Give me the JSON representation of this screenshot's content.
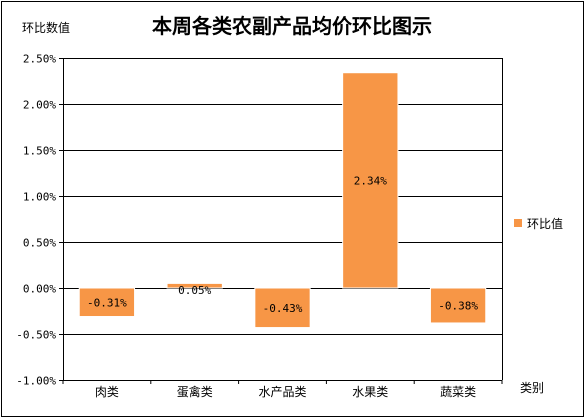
{
  "chart_data": {
    "type": "bar",
    "title": "本周各类农副产品均价环比图示",
    "ylabel": "环比数值",
    "xlabel": "类别",
    "categories": [
      "肉类",
      "蛋禽类",
      "水产品类",
      "水果类",
      "蔬菜类"
    ],
    "series": [
      {
        "name": "环比值",
        "values": [
          -0.31,
          0.05,
          -0.43,
          2.34,
          -0.38
        ]
      }
    ],
    "data_labels": [
      "-0.31%",
      "0.05%",
      "-0.43%",
      "2.34%",
      "-0.38%"
    ],
    "ylim": [
      -1.0,
      2.5
    ],
    "yticks": [
      2.5,
      2.0,
      1.5,
      1.0,
      0.5,
      0.0,
      -0.5,
      -1.0
    ],
    "ytick_labels": [
      "2.50%",
      "2.00%",
      "1.50%",
      "1.00%",
      "0.50%",
      "0.00%",
      "-0.50%",
      "-1.00%"
    ],
    "grid": true,
    "legend": "right",
    "colors": {
      "bar": "#F79646",
      "bar_border": "#FFFFFF",
      "grid": "#000000"
    }
  }
}
